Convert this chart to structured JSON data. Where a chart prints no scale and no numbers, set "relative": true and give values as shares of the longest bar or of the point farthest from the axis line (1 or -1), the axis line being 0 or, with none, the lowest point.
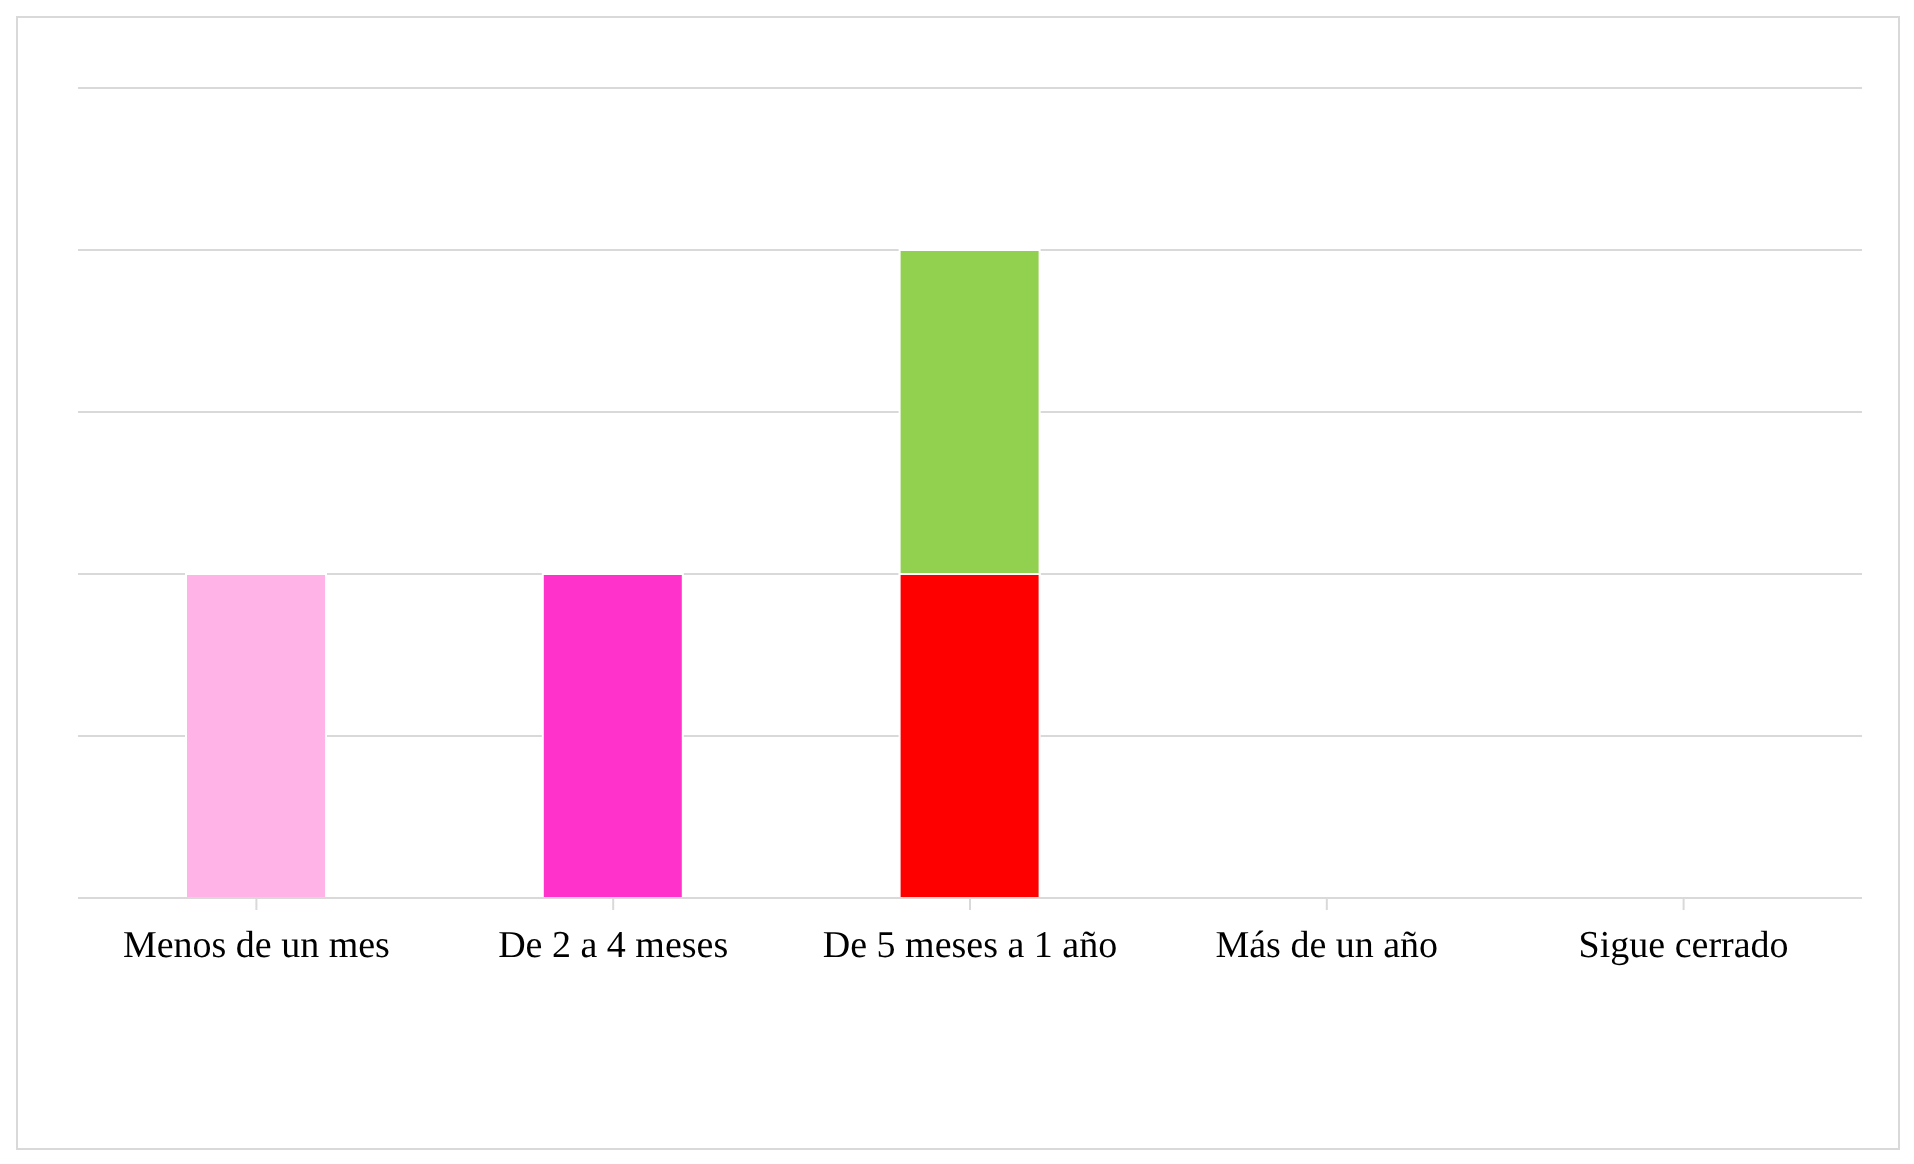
{
  "chart_data": {
    "type": "bar",
    "stacked": true,
    "relative": true,
    "grid": "y",
    "legend": false,
    "categories": [
      "Menos de un mes",
      "De 2 a 4 meses",
      "De 5 meses a 1 año",
      "Más de un año",
      "Sigue cerrado"
    ],
    "series": [
      {
        "color": "#ff0000",
        "values": [
          null,
          null,
          0.5,
          null,
          null
        ]
      },
      {
        "color": "#92d050",
        "values": [
          null,
          null,
          0.5,
          null,
          null
        ]
      },
      {
        "color": "#ff33cc",
        "values": [
          null,
          0.5,
          null,
          null,
          null
        ]
      },
      {
        "color": "#ffb3e6",
        "values": [
          0.5,
          null,
          null,
          null,
          null
        ]
      }
    ]
  }
}
